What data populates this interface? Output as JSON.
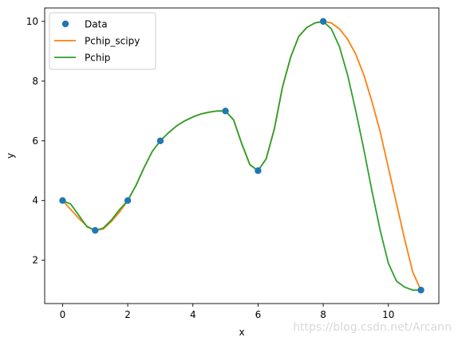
{
  "chart_data": {
    "type": "line",
    "xlabel": "x",
    "ylabel": "y",
    "xlim": [
      -0.55,
      11.55
    ],
    "ylim": [
      0.55,
      10.45
    ],
    "xticks": [
      0,
      2,
      4,
      6,
      8,
      10
    ],
    "yticks": [
      2,
      4,
      6,
      8,
      10
    ],
    "grid": false,
    "legend_position": "top-left",
    "series": [
      {
        "name": "Data",
        "kind": "scatter",
        "color": "#1f77b4",
        "x": [
          0,
          1,
          2,
          3,
          5,
          6,
          8,
          11
        ],
        "y": [
          4,
          3,
          4,
          6,
          7,
          5,
          10,
          1
        ]
      },
      {
        "name": "Pchip_scipy",
        "kind": "line",
        "color": "#ff7f0e",
        "x": [
          0,
          0.25,
          0.5,
          0.75,
          1,
          1.25,
          1.5,
          1.75,
          2,
          2.25,
          2.5,
          2.75,
          3,
          3.25,
          3.5,
          3.75,
          4,
          4.25,
          4.5,
          4.75,
          5,
          5.25,
          5.5,
          5.75,
          6,
          6.25,
          6.5,
          6.75,
          7,
          7.25,
          7.5,
          7.75,
          8,
          8.25,
          8.5,
          8.75,
          9,
          9.25,
          9.5,
          9.75,
          10,
          10.25,
          10.5,
          10.75,
          11
        ],
        "y": [
          4,
          3.7,
          3.4,
          3.14,
          3,
          3.05,
          3.3,
          3.62,
          4,
          4.5,
          5.1,
          5.64,
          6,
          6.27,
          6.5,
          6.67,
          6.8,
          6.9,
          6.96,
          7.0,
          7,
          6.7,
          5.9,
          5.2,
          5,
          5.4,
          6.4,
          7.8,
          8.8,
          9.5,
          9.8,
          9.95,
          10,
          9.95,
          9.75,
          9.4,
          8.9,
          8.2,
          7.3,
          6.3,
          5.1,
          3.9,
          2.7,
          1.6,
          1
        ]
      },
      {
        "name": "Pchip",
        "kind": "line",
        "color": "#2ca02c",
        "x": [
          0,
          0.25,
          0.5,
          0.75,
          1,
          1.25,
          1.5,
          1.75,
          2,
          2.25,
          2.5,
          2.75,
          3,
          3.25,
          3.5,
          3.75,
          4,
          4.25,
          4.5,
          4.75,
          5,
          5.25,
          5.5,
          5.75,
          6,
          6.25,
          6.5,
          6.75,
          7,
          7.25,
          7.5,
          7.75,
          8,
          8.25,
          8.5,
          8.75,
          9,
          9.25,
          9.5,
          9.75,
          10,
          10.25,
          10.5,
          10.75,
          11
        ],
        "y": [
          4,
          3.88,
          3.5,
          3.12,
          3,
          3.08,
          3.35,
          3.7,
          4,
          4.5,
          5.1,
          5.64,
          6,
          6.27,
          6.5,
          6.67,
          6.8,
          6.9,
          6.96,
          7.0,
          7,
          6.7,
          5.9,
          5.2,
          5,
          5.4,
          6.4,
          7.8,
          8.8,
          9.5,
          9.8,
          9.95,
          10,
          9.75,
          9.15,
          8.2,
          7.0,
          5.7,
          4.3,
          3.0,
          1.9,
          1.3,
          1.1,
          1.0,
          1
        ]
      }
    ]
  },
  "watermark": "https://blog.csdn.net/Arcann"
}
